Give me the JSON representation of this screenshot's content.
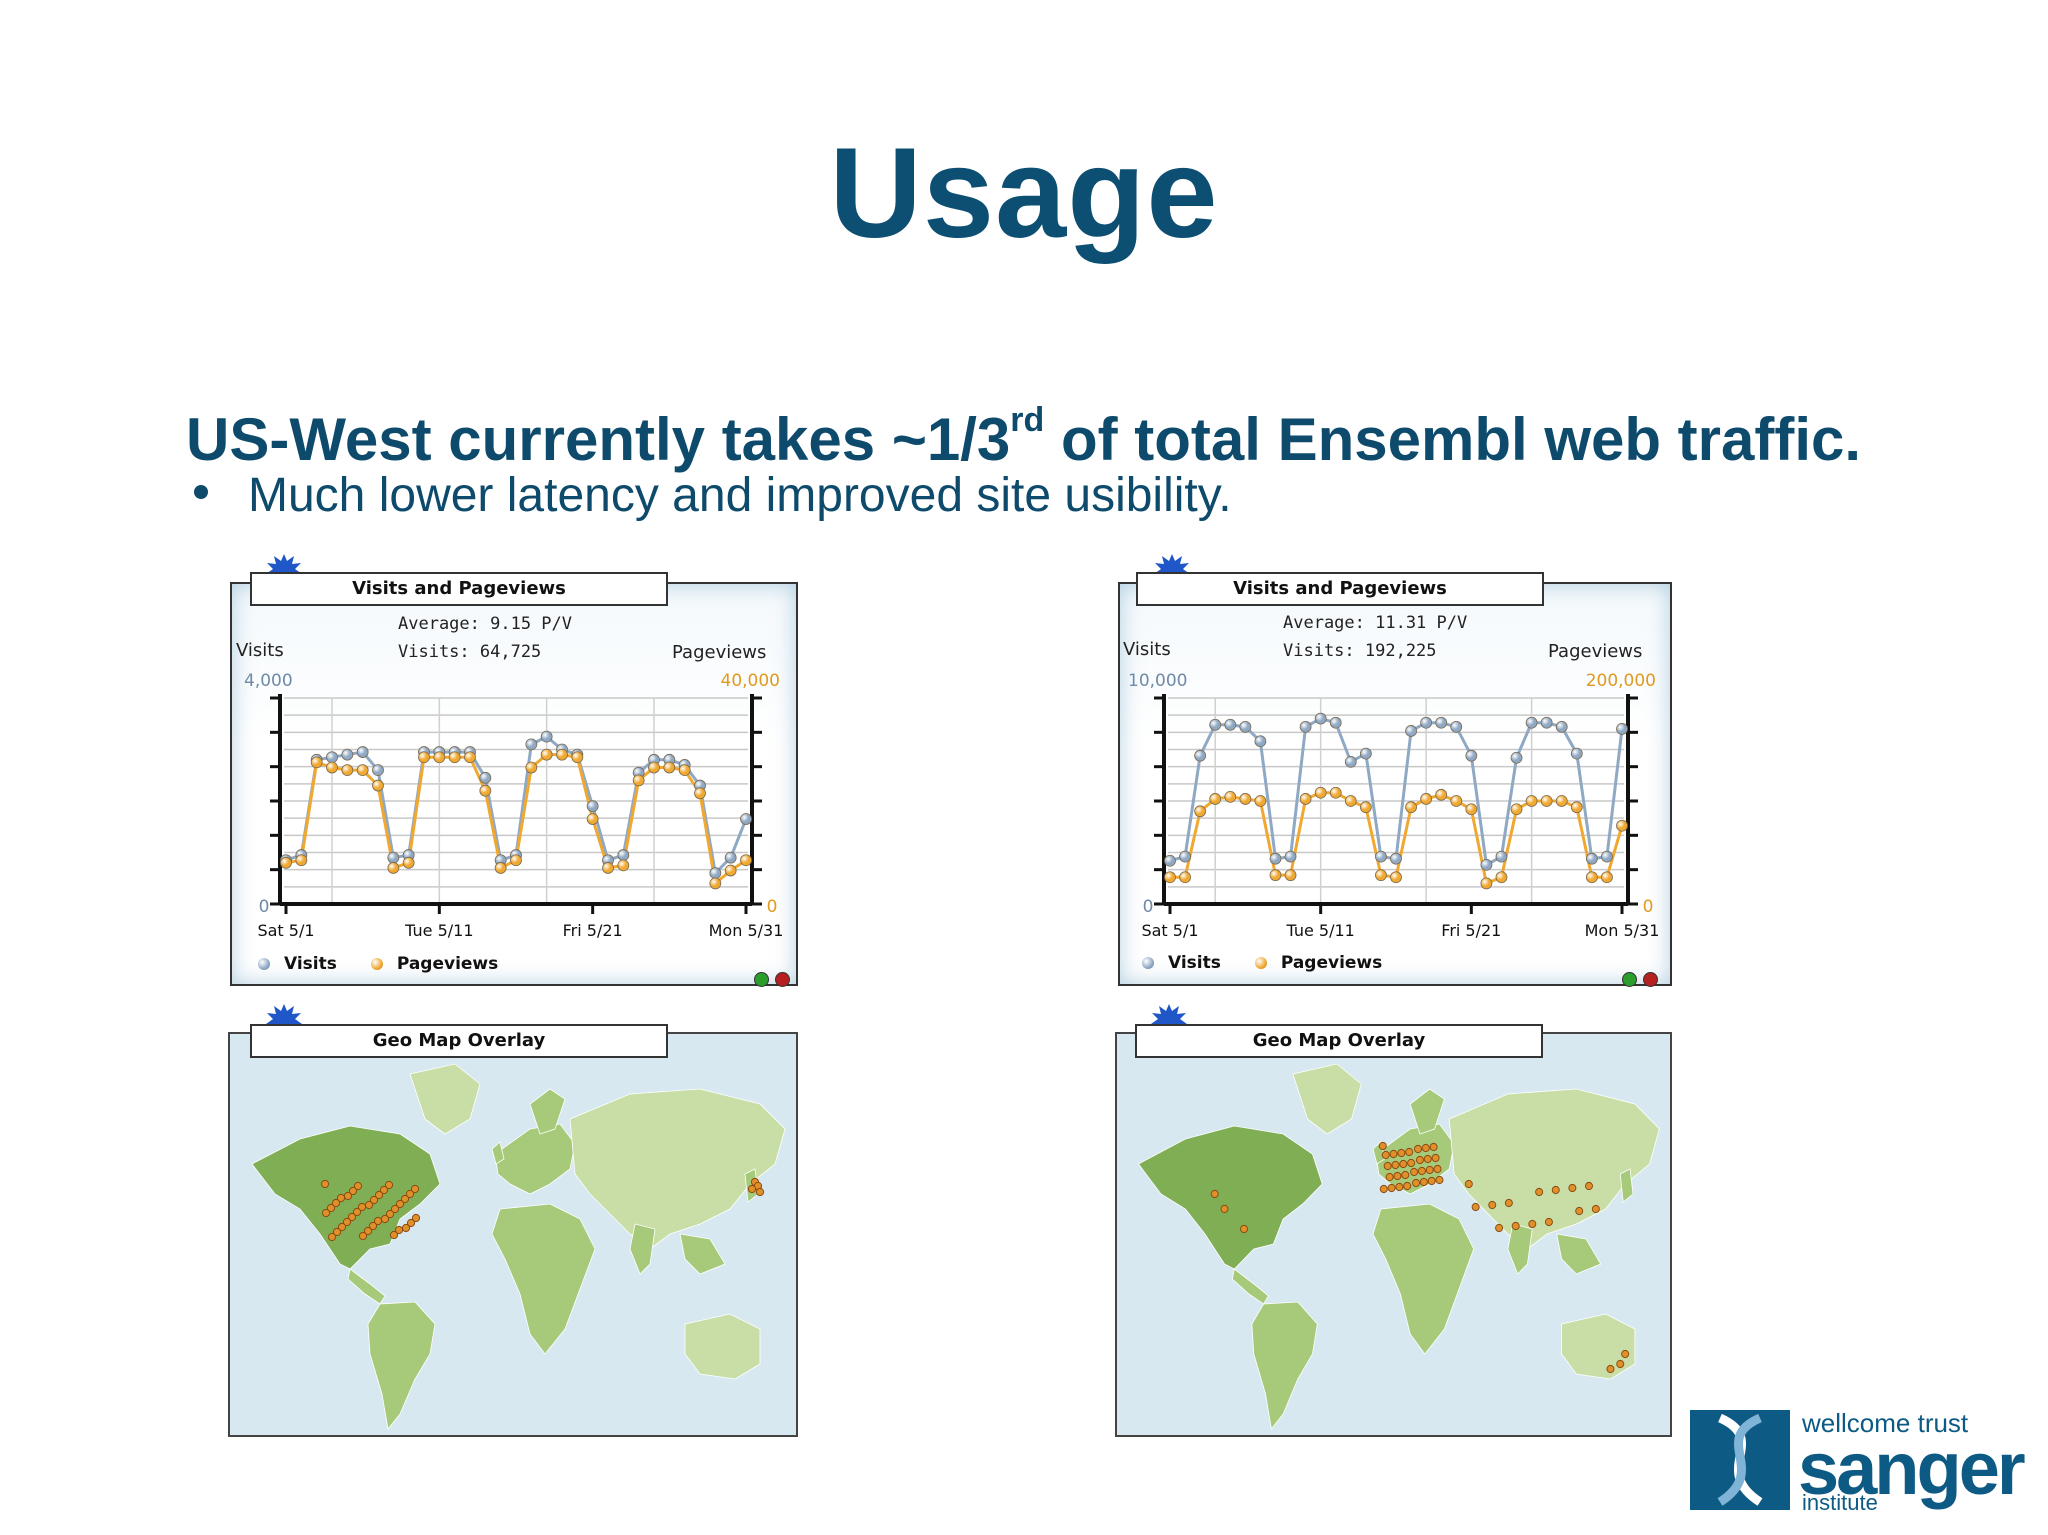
{
  "slide": {
    "title": "Usage",
    "headline_pre": "US-West currently takes ~1/3",
    "headline_sup": "rd",
    "headline_post": " of total Ensembl web traffic.",
    "bullet": "Much lower latency and improved site usibility."
  },
  "logo": {
    "line1": "wellcome trust",
    "line2": "sanger",
    "line3": "institute"
  },
  "colors": {
    "title": "#0d4f73",
    "visits": "#8fa8c4",
    "pageviews": "#f0a830",
    "map_water": "#d7e8f1",
    "map_land": "#9cc46e"
  },
  "panels": [
    {
      "widget_title": "Visits and Pageviews",
      "average": "Average: 9.15 P/V",
      "visits_stat": "Visits: 64,725",
      "left_axis_name": "Visits",
      "right_axis_name": "Pageviews",
      "left_max_label": "4,000",
      "right_max_label": "40,000",
      "left_zero": "0",
      "right_zero": "0",
      "legend_visits": "Visits",
      "legend_pageviews": "Pageviews",
      "map_title": "Geo Map Overlay",
      "map_highlight": "us"
    },
    {
      "widget_title": "Visits and Pageviews",
      "average": "Average: 11.31 P/V",
      "visits_stat": "Visits: 192,225",
      "left_axis_name": "Visits",
      "right_axis_name": "Pageviews",
      "left_max_label": "10,000",
      "right_max_label": "200,000",
      "left_zero": "0",
      "right_zero": "0",
      "legend_visits": "Visits",
      "legend_pageviews": "Pageviews",
      "map_title": "Geo Map Overlay",
      "map_highlight": "eu_asia"
    }
  ],
  "chart_data": [
    {
      "type": "line",
      "title": "Visits and Pageviews",
      "x_tick_labels": [
        "Sat 5/1",
        "Tue 5/11",
        "Fri 5/21",
        "Mon 5/31"
      ],
      "x_tick_days": [
        1,
        11,
        21,
        31
      ],
      "x": [
        1,
        2,
        3,
        4,
        5,
        6,
        7,
        8,
        9,
        10,
        11,
        12,
        13,
        14,
        15,
        16,
        17,
        18,
        19,
        20,
        21,
        22,
        23,
        24,
        25,
        26,
        27,
        28,
        29,
        30,
        31
      ],
      "y_left": {
        "name": "Visits",
        "range": [
          0,
          4000
        ]
      },
      "y_right": {
        "name": "Pageviews",
        "range": [
          0,
          40000
        ]
      },
      "grid": true,
      "series": [
        {
          "name": "Visits",
          "axis": "left",
          "color": "#8fa8c4",
          "values": [
            850,
            950,
            2800,
            2850,
            2900,
            2950,
            2600,
            900,
            950,
            2950,
            2950,
            2950,
            2950,
            2450,
            850,
            950,
            3100,
            3250,
            3000,
            2900,
            1900,
            850,
            950,
            2550,
            2800,
            2800,
            2700,
            2300,
            600,
            900,
            1650
          ]
        },
        {
          "name": "Pageviews",
          "axis": "left",
          "color": "#f0a830",
          "values": [
            800,
            850,
            2750,
            2650,
            2600,
            2600,
            2300,
            700,
            800,
            2850,
            2850,
            2850,
            2850,
            2200,
            700,
            850,
            2650,
            2900,
            2900,
            2850,
            1650,
            700,
            750,
            2400,
            2650,
            2650,
            2600,
            2150,
            400,
            650,
            850
          ]
        }
      ]
    },
    {
      "type": "line",
      "title": "Visits and Pageviews",
      "x_tick_labels": [
        "Sat 5/1",
        "Tue 5/11",
        "Fri 5/21",
        "Mon 5/31"
      ],
      "x_tick_days": [
        1,
        11,
        21,
        31
      ],
      "x": [
        1,
        2,
        3,
        4,
        5,
        6,
        7,
        8,
        9,
        10,
        11,
        12,
        13,
        14,
        15,
        16,
        17,
        18,
        19,
        20,
        21,
        22,
        23,
        24,
        25,
        26,
        27,
        28,
        29,
        30,
        31
      ],
      "y_left": {
        "name": "Visits",
        "range": [
          0,
          10000
        ]
      },
      "y_right": {
        "name": "Pageviews",
        "range": [
          0,
          200000
        ]
      },
      "grid": true,
      "series": [
        {
          "name": "Visits",
          "axis": "left",
          "color": "#8fa8c4",
          "values": [
            2100,
            2300,
            7200,
            8700,
            8700,
            8600,
            7900,
            2200,
            2300,
            8600,
            9000,
            8800,
            6900,
            7300,
            2300,
            2200,
            8400,
            8800,
            8800,
            8600,
            7200,
            1900,
            2300,
            7100,
            8800,
            8800,
            8600,
            7300,
            2200,
            2300,
            8500
          ]
        },
        {
          "name": "Pageviews",
          "axis": "left",
          "color": "#f0a830",
          "values": [
            1300,
            1300,
            4500,
            5100,
            5200,
            5100,
            5000,
            1400,
            1400,
            5100,
            5400,
            5400,
            5000,
            4700,
            1400,
            1300,
            4700,
            5100,
            5300,
            5000,
            4600,
            1000,
            1300,
            4600,
            5000,
            5000,
            5000,
            4700,
            1300,
            1300,
            3800
          ]
        }
      ]
    }
  ]
}
